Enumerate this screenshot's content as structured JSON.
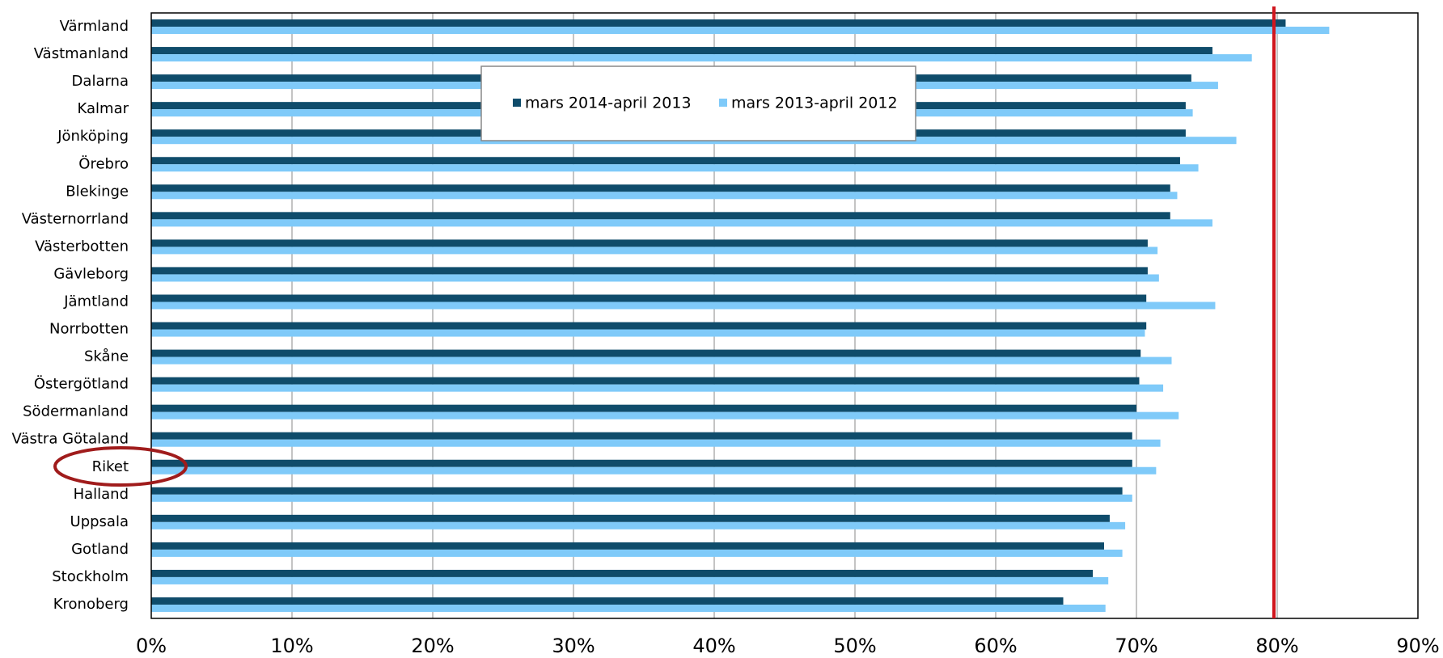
{
  "chart_data": {
    "type": "bar",
    "orientation": "horizontal",
    "categories": [
      "Värmland",
      "Västmanland",
      "Dalarna",
      "Kalmar",
      "Jönköping",
      "Örebro",
      "Blekinge",
      "Västernorrland",
      "Västerbotten",
      "Gävleborg",
      "Jämtland",
      "Norrbotten",
      "Skåne",
      "Östergötland",
      "Södermanland",
      "Västra Götaland",
      "Riket",
      "Halland",
      "Uppsala",
      "Gotland",
      "Stockholm",
      "Kronoberg"
    ],
    "series": [
      {
        "name": "mars 2014-april 2013",
        "color": "#0f4c6b",
        "values": [
          80.6,
          75.4,
          73.9,
          73.5,
          73.5,
          73.1,
          72.4,
          72.4,
          70.8,
          70.8,
          70.7,
          70.7,
          70.3,
          70.2,
          70.0,
          69.7,
          69.7,
          69.0,
          68.1,
          67.7,
          66.9,
          64.8
        ]
      },
      {
        "name": "mars 2013-april 2012",
        "color": "#7fcaf9",
        "values": [
          83.7,
          78.2,
          75.8,
          74.0,
          77.1,
          74.4,
          72.9,
          75.4,
          71.5,
          71.6,
          75.6,
          70.6,
          72.5,
          71.9,
          73.0,
          71.7,
          71.4,
          69.7,
          69.2,
          69.0,
          68.0,
          67.8
        ]
      }
    ],
    "xlim": [
      0,
      90
    ],
    "xticks": [
      {
        "value": 0,
        "label": "0%"
      },
      {
        "value": 10,
        "label": "10%"
      },
      {
        "value": 20,
        "label": "20%"
      },
      {
        "value": 30,
        "label": "30%"
      },
      {
        "value": 40,
        "label": "40%"
      },
      {
        "value": 50,
        "label": "50%"
      },
      {
        "value": 60,
        "label": "60%"
      },
      {
        "value": 70,
        "label": "70%"
      },
      {
        "value": 80,
        "label": "80%"
      },
      {
        "value": 90,
        "label": "90%"
      }
    ],
    "grid": true,
    "target": 80,
    "target_color": "#d0161e"
  }
}
